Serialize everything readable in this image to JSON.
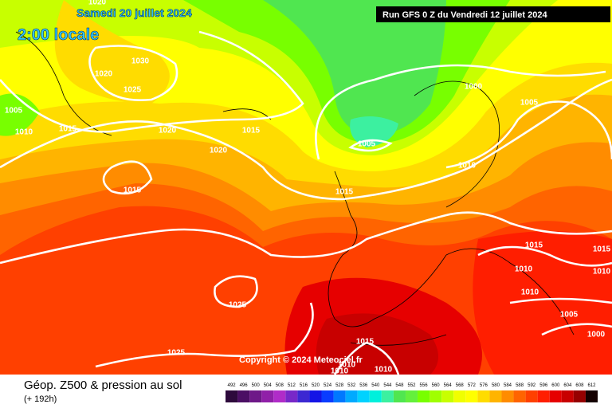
{
  "header": {
    "date": "Samedi 20 juillet 2024",
    "time": "2:00 locale",
    "run": "Run GFS 0 Z du Vendredi 12 juillet 2024"
  },
  "copyright": "Copyright © 2024 Meteociel.fr",
  "footer": {
    "title": "Géop. Z500 & pression au sol",
    "subtitle": "(+ 192h)"
  },
  "isobar_labels": [
    1020,
    1030,
    1020,
    1025,
    1005,
    1010,
    1015,
    1020,
    1015,
    1020,
    1000,
    1005,
    1005,
    1010,
    1015,
    1015,
    1015,
    1010,
    1010,
    1015,
    1010,
    1005,
    1000,
    1025,
    1025,
    1015,
    1010,
    1010,
    1010
  ],
  "legend": {
    "ticks": [
      492,
      496,
      500,
      504,
      508,
      512,
      516,
      520,
      524,
      528,
      532,
      536,
      540,
      544,
      548,
      552,
      556,
      560,
      564,
      568,
      572,
      576,
      580,
      584,
      588,
      592,
      596,
      600,
      604,
      608,
      612
    ],
    "colors": [
      "#2d0a3c",
      "#4b0f64",
      "#6e1888",
      "#9020a8",
      "#b02cc8",
      "#7828c8",
      "#3c28d2",
      "#1414e6",
      "#0a3cff",
      "#0078ff",
      "#00aaff",
      "#00d2ff",
      "#00f0dc",
      "#3cf0a0",
      "#50e650",
      "#64f03c",
      "#78ff00",
      "#a0ff00",
      "#c8ff00",
      "#f0ff00",
      "#ffff00",
      "#ffdc00",
      "#ffb400",
      "#ff8c00",
      "#ff6400",
      "#ff4000",
      "#ff1e00",
      "#e60000",
      "#c80000",
      "#960000",
      "#140000"
    ]
  }
}
